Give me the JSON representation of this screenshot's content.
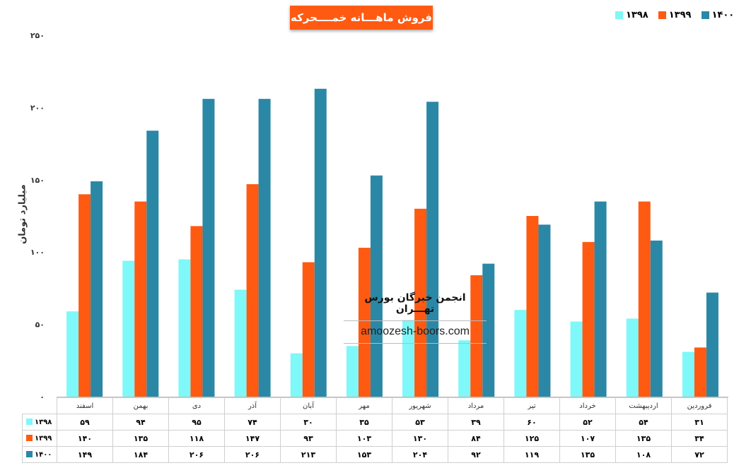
{
  "title": "فروش ماهـــانه خمــــحرکه",
  "watermark": {
    "org": "انجمن خبرگان بورس تهـــران",
    "url": "amoozesh-boors.com"
  },
  "colors": {
    "1398": "#7ef8f8",
    "1399": "#ff5a12",
    "1400": "#2a88a6"
  },
  "chart_data": {
    "type": "bar",
    "categories": [
      "فروردین",
      "اردیبهشت",
      "خرداد",
      "تیر",
      "مرداد",
      "شهریور",
      "مهر",
      "آبان",
      "آذر",
      "دی",
      "بهمن",
      "اسفند"
    ],
    "series": [
      {
        "name": "۱۳۹۸",
        "key": "1398",
        "values": [
          31,
          54,
          52,
          60,
          39,
          53,
          35,
          30,
          74,
          95,
          94,
          59
        ],
        "labels": [
          "۳۱",
          "۵۴",
          "۵۲",
          "۶۰",
          "۳۹",
          "۵۳",
          "۳۵",
          "۳۰",
          "۷۴",
          "۹۵",
          "۹۴",
          "۵۹"
        ]
      },
      {
        "name": "۱۳۹۹",
        "key": "1399",
        "values": [
          34,
          135,
          107,
          125,
          84,
          130,
          103,
          93,
          147,
          118,
          135,
          140
        ],
        "labels": [
          "۳۴",
          "۱۳۵",
          "۱۰۷",
          "۱۲۵",
          "۸۴",
          "۱۳۰",
          "۱۰۳",
          "۹۳",
          "۱۴۷",
          "۱۱۸",
          "۱۳۵",
          "۱۴۰"
        ]
      },
      {
        "name": "۱۴۰۰",
        "key": "1400",
        "values": [
          72,
          108,
          135,
          119,
          92,
          204,
          153,
          213,
          206,
          206,
          184,
          149
        ],
        "labels": [
          "۷۲",
          "۱۰۸",
          "۱۳۵",
          "۱۱۹",
          "۹۲",
          "۲۰۴",
          "۱۵۳",
          "۲۱۳",
          "۲۰۶",
          "۲۰۶",
          "۱۸۴",
          "۱۴۹"
        ]
      }
    ],
    "ylabel": "میلیارد تومان",
    "ylim": [
      0,
      250
    ],
    "yticks": [
      0,
      50,
      100,
      150,
      200,
      250
    ],
    "ytick_labels": [
      "۰",
      "۵۰",
      "۱۰۰",
      "۱۵۰",
      "۲۰۰",
      "۲۵۰"
    ],
    "legend_position": "top-right",
    "grid": false,
    "data_table": true
  }
}
